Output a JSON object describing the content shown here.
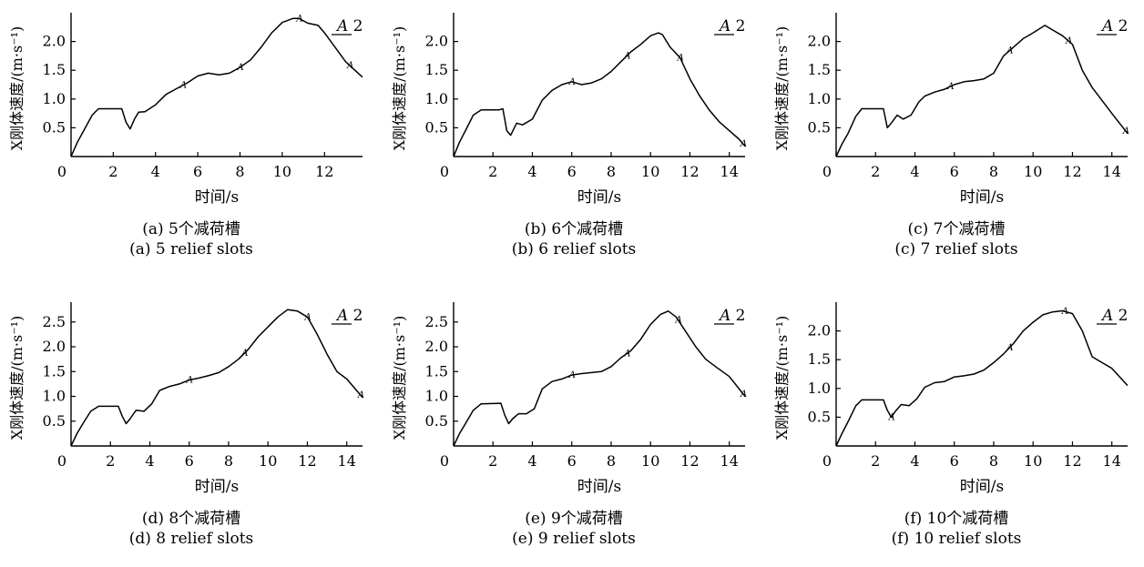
{
  "chart_data": [
    {
      "type": "line",
      "caption_cn": "(a) 5个减荷槽",
      "caption_en": "(a) 5 relief slots",
      "ylabel": "X刚体速度/(m·s⁻¹)",
      "xlabel": "时间/s",
      "legend": {
        "letter": "A",
        "suffix": " 2"
      },
      "marker_label": "A",
      "xlim": [
        0,
        13.8
      ],
      "ylim": [
        0,
        2.5
      ],
      "xticks": [
        0,
        2,
        4,
        6,
        8,
        10,
        12
      ],
      "yticks": [
        0.5,
        1.0,
        1.5,
        2.0
      ],
      "ytick_labels": [
        "0.5",
        "1.0",
        "1.5",
        "2.0"
      ],
      "series": [
        {
          "x": [
            0,
            0.3,
            0.6,
            1.0,
            1.3,
            2.3,
            2.4,
            2.6,
            2.8,
            3.0,
            3.2,
            3.5,
            4.0,
            4.5,
            5.0,
            5.5,
            6.0,
            6.5,
            7.0,
            7.5,
            8.0,
            8.5,
            9.0,
            9.5,
            10.0,
            10.5,
            10.8,
            11.2,
            11.7,
            12.0,
            12.5,
            13.0,
            13.8
          ],
          "values": [
            0,
            0.25,
            0.45,
            0.72,
            0.83,
            0.83,
            0.83,
            0.6,
            0.48,
            0.65,
            0.77,
            0.78,
            0.9,
            1.08,
            1.18,
            1.28,
            1.4,
            1.45,
            1.42,
            1.45,
            1.55,
            1.68,
            1.9,
            2.15,
            2.33,
            2.4,
            2.4,
            2.32,
            2.28,
            2.15,
            1.9,
            1.65,
            1.38
          ]
        }
      ],
      "markers_x": [
        5.3,
        8.0,
        10.8,
        13.2
      ]
    },
    {
      "type": "line",
      "caption_cn": "(b) 6个减荷槽",
      "caption_en": "(b) 6 relief slots",
      "ylabel": "X刚体速度/(m·s⁻¹)",
      "xlabel": "时间/s",
      "legend": {
        "letter": "A",
        "suffix": " 2"
      },
      "marker_label": "A",
      "xlim": [
        0,
        14.8
      ],
      "ylim": [
        0,
        2.5
      ],
      "xticks": [
        0,
        2,
        4,
        6,
        8,
        10,
        12,
        14
      ],
      "yticks": [
        0.5,
        1.0,
        1.5,
        2.0
      ],
      "ytick_labels": [
        "0.5",
        "1.0",
        "1.5",
        "2.0"
      ],
      "series": [
        {
          "x": [
            0,
            0.3,
            0.6,
            1.0,
            1.4,
            2.3,
            2.5,
            2.7,
            2.9,
            3.2,
            3.5,
            4.0,
            4.5,
            5.0,
            5.5,
            6.0,
            6.5,
            7.0,
            7.5,
            8.0,
            8.5,
            9.0,
            9.5,
            10.0,
            10.4,
            10.6,
            11.0,
            11.5,
            12.0,
            12.5,
            13.0,
            13.5,
            14.0,
            14.5,
            14.8
          ],
          "values": [
            0,
            0.25,
            0.45,
            0.72,
            0.81,
            0.81,
            0.83,
            0.45,
            0.37,
            0.58,
            0.55,
            0.65,
            0.98,
            1.15,
            1.25,
            1.3,
            1.25,
            1.28,
            1.35,
            1.48,
            1.65,
            1.82,
            1.95,
            2.1,
            2.15,
            2.12,
            1.9,
            1.72,
            1.35,
            1.05,
            0.8,
            0.6,
            0.45,
            0.3,
            0.18
          ]
        }
      ],
      "markers_x": [
        6.0,
        8.8,
        11.5,
        14.7
      ]
    },
    {
      "type": "line",
      "caption_cn": "(c) 7个减荷槽",
      "caption_en": "(c) 7 relief slots",
      "ylabel": "X刚体速度/(m·s⁻¹)",
      "xlabel": "时间/s",
      "legend": {
        "letter": "A",
        "suffix": " 2"
      },
      "marker_label": "A",
      "xlim": [
        0,
        14.8
      ],
      "ylim": [
        0,
        2.5
      ],
      "xticks": [
        0,
        2,
        4,
        6,
        8,
        10,
        12,
        14
      ],
      "yticks": [
        0.5,
        1.0,
        1.5,
        2.0
      ],
      "ytick_labels": [
        "0.5",
        "1.0",
        "1.5",
        "2.0"
      ],
      "series": [
        {
          "x": [
            0,
            0.3,
            0.6,
            1.0,
            1.3,
            2.3,
            2.4,
            2.6,
            2.8,
            3.1,
            3.4,
            3.8,
            4.2,
            4.5,
            5.0,
            5.5,
            6.0,
            6.5,
            7.0,
            7.5,
            8.0,
            8.5,
            9.0,
            9.5,
            10.0,
            10.6,
            11.0,
            11.5,
            12.0,
            12.5,
            13.0,
            14.0,
            14.8
          ],
          "values": [
            0,
            0.22,
            0.4,
            0.7,
            0.83,
            0.83,
            0.83,
            0.5,
            0.58,
            0.72,
            0.65,
            0.72,
            0.95,
            1.05,
            1.12,
            1.17,
            1.25,
            1.3,
            1.32,
            1.35,
            1.45,
            1.75,
            1.9,
            2.05,
            2.15,
            2.28,
            2.2,
            2.1,
            1.95,
            1.5,
            1.2,
            0.75,
            0.4
          ]
        }
      ],
      "markers_x": [
        5.8,
        8.8,
        11.8,
        14.7
      ]
    },
    {
      "type": "line",
      "caption_cn": "(d) 8个减荷槽",
      "caption_en": "(d) 8 relief slots",
      "ylabel": "X刚体速度/(m·s⁻¹)",
      "xlabel": "时间/s",
      "legend": {
        "letter": "A",
        "suffix": " 2"
      },
      "marker_label": "A",
      "xlim": [
        0,
        14.8
      ],
      "ylim": [
        0,
        2.9
      ],
      "xticks": [
        0,
        2,
        4,
        6,
        8,
        10,
        12,
        14
      ],
      "yticks": [
        0.5,
        1.0,
        1.5,
        2.0,
        2.5
      ],
      "ytick_labels": [
        "0.5",
        "1.0",
        "1.5",
        "2.0",
        "2.5"
      ],
      "series": [
        {
          "x": [
            0,
            0.3,
            0.6,
            1.0,
            1.4,
            2.4,
            2.6,
            2.8,
            3.0,
            3.3,
            3.7,
            4.1,
            4.5,
            5.0,
            5.5,
            6.0,
            6.5,
            7.0,
            7.5,
            8.0,
            8.5,
            9.0,
            9.5,
            10.0,
            10.5,
            11.0,
            11.5,
            12.0,
            12.5,
            13.0,
            13.5,
            14.0,
            14.8
          ],
          "values": [
            0,
            0.25,
            0.45,
            0.7,
            0.8,
            0.8,
            0.6,
            0.45,
            0.55,
            0.72,
            0.7,
            0.85,
            1.12,
            1.2,
            1.25,
            1.33,
            1.37,
            1.42,
            1.48,
            1.6,
            1.75,
            1.95,
            2.2,
            2.4,
            2.6,
            2.75,
            2.72,
            2.6,
            2.25,
            1.85,
            1.5,
            1.35,
            0.98
          ]
        }
      ],
      "markers_x": [
        6.0,
        8.8,
        12.0,
        14.7
      ]
    },
    {
      "type": "line",
      "caption_cn": "(e) 9个减荷槽",
      "caption_en": "(e) 9 relief slots",
      "ylabel": "X刚体速度/(m·s⁻¹)",
      "xlabel": "时间/s",
      "legend": {
        "letter": "A",
        "suffix": " 2"
      },
      "marker_label": "A",
      "xlim": [
        0,
        14.8
      ],
      "ylim": [
        0,
        2.9
      ],
      "xticks": [
        0,
        2,
        4,
        6,
        8,
        10,
        12,
        14
      ],
      "yticks": [
        0.5,
        1.0,
        1.5,
        2.0,
        2.5
      ],
      "ytick_labels": [
        "0.5",
        "1.0",
        "1.5",
        "2.0",
        "2.5"
      ],
      "series": [
        {
          "x": [
            0,
            0.3,
            0.6,
            1.0,
            1.4,
            2.4,
            2.6,
            2.8,
            3.0,
            3.3,
            3.7,
            4.1,
            4.5,
            5.0,
            5.5,
            6.0,
            6.5,
            7.0,
            7.5,
            8.0,
            8.5,
            9.0,
            9.5,
            10.0,
            10.5,
            10.9,
            11.3,
            11.8,
            12.3,
            12.8,
            13.3,
            14.0,
            14.8
          ],
          "values": [
            0,
            0.25,
            0.45,
            0.72,
            0.85,
            0.86,
            0.62,
            0.45,
            0.55,
            0.65,
            0.65,
            0.75,
            1.15,
            1.3,
            1.35,
            1.43,
            1.46,
            1.48,
            1.5,
            1.6,
            1.78,
            1.92,
            2.15,
            2.45,
            2.65,
            2.72,
            2.6,
            2.3,
            2.0,
            1.75,
            1.6,
            1.4,
            1.0
          ]
        }
      ],
      "markers_x": [
        6.0,
        8.8,
        11.4,
        14.7
      ]
    },
    {
      "type": "line",
      "caption_cn": "(f) 10个减荷槽",
      "caption_en": "(f) 10 relief slots",
      "ylabel": "X刚体速度/(m·s⁻¹)",
      "xlabel": "时间/s",
      "legend": {
        "letter": "A",
        "suffix": " 2"
      },
      "marker_label": "A",
      "xlim": [
        0,
        14.8
      ],
      "ylim": [
        0,
        2.5
      ],
      "xticks": [
        0,
        2,
        4,
        6,
        8,
        10,
        12,
        14
      ],
      "yticks": [
        0.5,
        1.0,
        1.5,
        2.0
      ],
      "ytick_labels": [
        "0.5",
        "1.0",
        "1.5",
        "2.0"
      ],
      "series": [
        {
          "x": [
            0,
            0.3,
            0.6,
            1.0,
            1.3,
            2.4,
            2.6,
            2.8,
            3.0,
            3.3,
            3.7,
            4.1,
            4.5,
            5.0,
            5.5,
            6.0,
            6.5,
            7.0,
            7.5,
            8.0,
            8.5,
            9.0,
            9.5,
            10.0,
            10.5,
            11.0,
            11.5,
            12.0,
            12.5,
            13.0,
            13.5,
            14.0,
            14.8
          ],
          "values": [
            0,
            0.22,
            0.42,
            0.7,
            0.8,
            0.8,
            0.62,
            0.5,
            0.6,
            0.72,
            0.7,
            0.82,
            1.02,
            1.1,
            1.12,
            1.2,
            1.22,
            1.25,
            1.32,
            1.45,
            1.6,
            1.78,
            2.0,
            2.15,
            2.28,
            2.33,
            2.35,
            2.3,
            2.0,
            1.55,
            1.45,
            1.35,
            1.05
          ]
        }
      ],
      "markers_x": [
        2.8,
        8.8,
        11.6
      ]
    }
  ]
}
